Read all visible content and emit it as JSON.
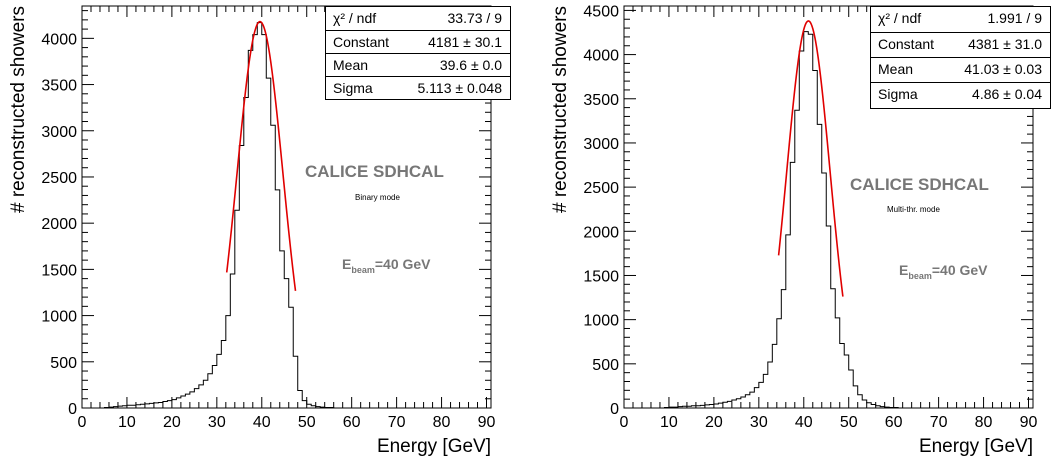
{
  "chart_data": [
    {
      "type": "histogram",
      "xlabel": "Energy [GeV]",
      "ylabel": "# reconstructed showers",
      "xlim": [
        0,
        91
      ],
      "ylim": [
        0,
        4350
      ],
      "xticks": [
        0,
        10,
        20,
        30,
        40,
        50,
        60,
        70,
        80,
        90
      ],
      "yticks": [
        0,
        500,
        1000,
        1500,
        2000,
        2500,
        3000,
        3500,
        4000
      ],
      "bin_width": 1,
      "bin_start": 0,
      "values": [
        0,
        0,
        0,
        0,
        0,
        5,
        10,
        15,
        20,
        25,
        30,
        30,
        35,
        40,
        45,
        50,
        55,
        60,
        70,
        80,
        90,
        110,
        130,
        150,
        175,
        210,
        250,
        300,
        370,
        460,
        580,
        730,
        1000,
        1450,
        2140,
        2840,
        3360,
        3870,
        4040,
        4170,
        4040,
        3570,
        3060,
        2360,
        1700,
        1400,
        1090,
        560,
        190,
        80,
        40,
        25,
        15,
        10,
        5,
        5,
        0,
        0,
        0,
        0,
        0,
        0,
        0,
        0,
        0,
        0,
        0,
        0,
        0,
        0,
        0,
        0,
        0,
        0,
        0,
        0,
        0,
        0,
        0,
        0,
        0,
        0,
        0,
        0,
        0,
        0,
        0,
        0,
        0,
        0,
        0
      ],
      "fit": {
        "function": "gaus",
        "constant": 4181,
        "mean": 39.6,
        "sigma": 5.113,
        "range": [
          32.2,
          47.5
        ]
      },
      "stats": [
        {
          "label": "χ² / ndf",
          "value": "33.73 / 9"
        },
        {
          "label": "Constant",
          "value": "4181 ± 30.1"
        },
        {
          "label": "Mean",
          "value": "39.6 ± 0.0"
        },
        {
          "label": "Sigma",
          "value": "5.113 ± 0.048"
        }
      ],
      "annotations": {
        "title": "CALICE SDHCAL",
        "mode": "Binary mode",
        "beam_prefix": "E",
        "beam_sub": "beam",
        "beam_value": "=40 GeV"
      },
      "colors": {
        "histogram": "#000000",
        "fit": "#e00000",
        "annotation": "#777777"
      }
    },
    {
      "type": "histogram",
      "xlabel": "Energy [GeV]",
      "ylabel": "# reconstructed showers",
      "xlim": [
        0,
        91
      ],
      "ylim": [
        0,
        4550
      ],
      "xticks": [
        0,
        10,
        20,
        30,
        40,
        50,
        60,
        70,
        80,
        90
      ],
      "yticks": [
        0,
        500,
        1000,
        1500,
        2000,
        2500,
        3000,
        3500,
        4000,
        4500
      ],
      "bin_width": 1,
      "bin_start": 0,
      "values": [
        0,
        0,
        0,
        0,
        0,
        0,
        0,
        0,
        0,
        5,
        10,
        10,
        15,
        20,
        20,
        25,
        25,
        30,
        35,
        40,
        45,
        55,
        65,
        75,
        90,
        105,
        125,
        150,
        180,
        230,
        290,
        380,
        520,
        720,
        1010,
        1340,
        1960,
        2780,
        3370,
        4040,
        4260,
        4230,
        3820,
        3210,
        2660,
        2060,
        1350,
        1020,
        730,
        600,
        430,
        250,
        150,
        90,
        60,
        40,
        25,
        15,
        10,
        5,
        5,
        0,
        0,
        0,
        0,
        0,
        0,
        0,
        0,
        0,
        0,
        0,
        0,
        0,
        0,
        0,
        0,
        0,
        0,
        0,
        0,
        0,
        0,
        0,
        0,
        0,
        0,
        0,
        0,
        0,
        0
      ],
      "fit": {
        "function": "gaus",
        "constant": 4381,
        "mean": 41.03,
        "sigma": 4.86,
        "range": [
          34.4,
          48.7
        ]
      },
      "stats": [
        {
          "label": "χ² / ndf",
          "value": "1.991 / 9"
        },
        {
          "label": "Constant",
          "value": "4381 ± 31.0"
        },
        {
          "label": "Mean",
          "value": "41.03 ± 0.03"
        },
        {
          "label": "Sigma",
          "value": "4.86 ± 0.04"
        }
      ],
      "annotations": {
        "title": "CALICE SDHCAL",
        "mode": "Multi-thr. mode",
        "beam_prefix": "E",
        "beam_sub": "beam",
        "beam_value": "=40 GeV"
      },
      "colors": {
        "histogram": "#000000",
        "fit": "#e00000",
        "annotation": "#777777"
      }
    }
  ]
}
